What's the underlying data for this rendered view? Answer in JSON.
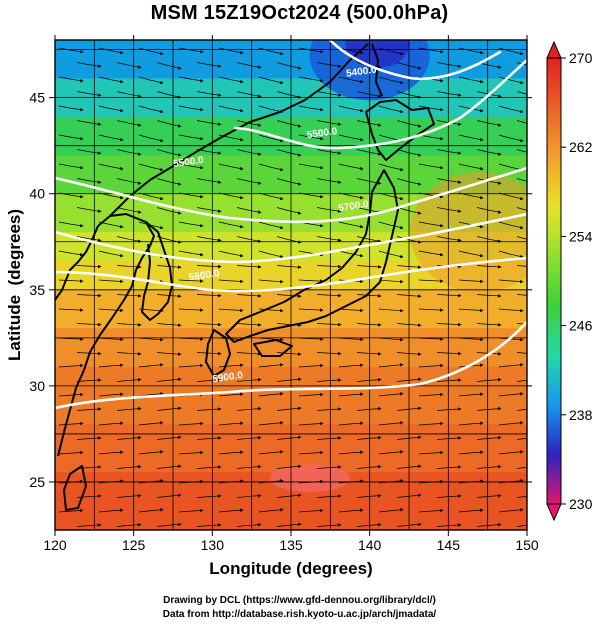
{
  "title": "MSM 15Z19Oct2024 (500.0hPa)",
  "map": {
    "xlabel": "Longitude (degrees)",
    "ylabel": "Latitude  (degrees)",
    "xlim": [
      120,
      150
    ],
    "ylim": [
      22.5,
      48
    ],
    "x_ticks": [
      120,
      125,
      130,
      135,
      140,
      145,
      150
    ],
    "y_ticks": [
      25,
      30,
      35,
      40,
      45
    ],
    "x_tick_labels": [
      "120",
      "125",
      "130",
      "135",
      "140",
      "145",
      "150"
    ],
    "y_tick_labels": [
      "25",
      "30",
      "35",
      "40",
      "45"
    ],
    "fill_field": "temperature (K), shaded",
    "vectors": "wind streamlines with arrowheads",
    "coastlines": true,
    "grid": true
  },
  "contour_labels": [
    {
      "text": "5400.0",
      "lon": 139.5,
      "lat": 46.2
    },
    {
      "text": "5500.0",
      "lon": 137.0,
      "lat": 43.0
    },
    {
      "text": "5500.0",
      "lon": 128.5,
      "lat": 41.5
    },
    {
      "text": "5700.0",
      "lon": 139.0,
      "lat": 39.2
    },
    {
      "text": "5800.0",
      "lon": 129.5,
      "lat": 35.6
    },
    {
      "text": "5900.0",
      "lon": 131.0,
      "lat": 30.3
    }
  ],
  "colorbar": {
    "min": 230,
    "max": 270,
    "tick_labels": [
      "270",
      "262",
      "254",
      "246",
      "238",
      "230"
    ],
    "tick_values": [
      270,
      262,
      254,
      246,
      238,
      230
    ],
    "colors": [
      "#e3156f",
      "#2a24c0",
      "#1797ef",
      "#24d8a7",
      "#3dd13a",
      "#8fe02e",
      "#e8e328",
      "#f2a12b",
      "#ec6124",
      "#e32121"
    ]
  },
  "credits": {
    "line1": "Drawing by DCL (https://www.gfd-dennou.org/library/dcl/)",
    "line2": "Data from http://database.rish.kyoto-u.ac.jp/arch/jmadata/"
  }
}
